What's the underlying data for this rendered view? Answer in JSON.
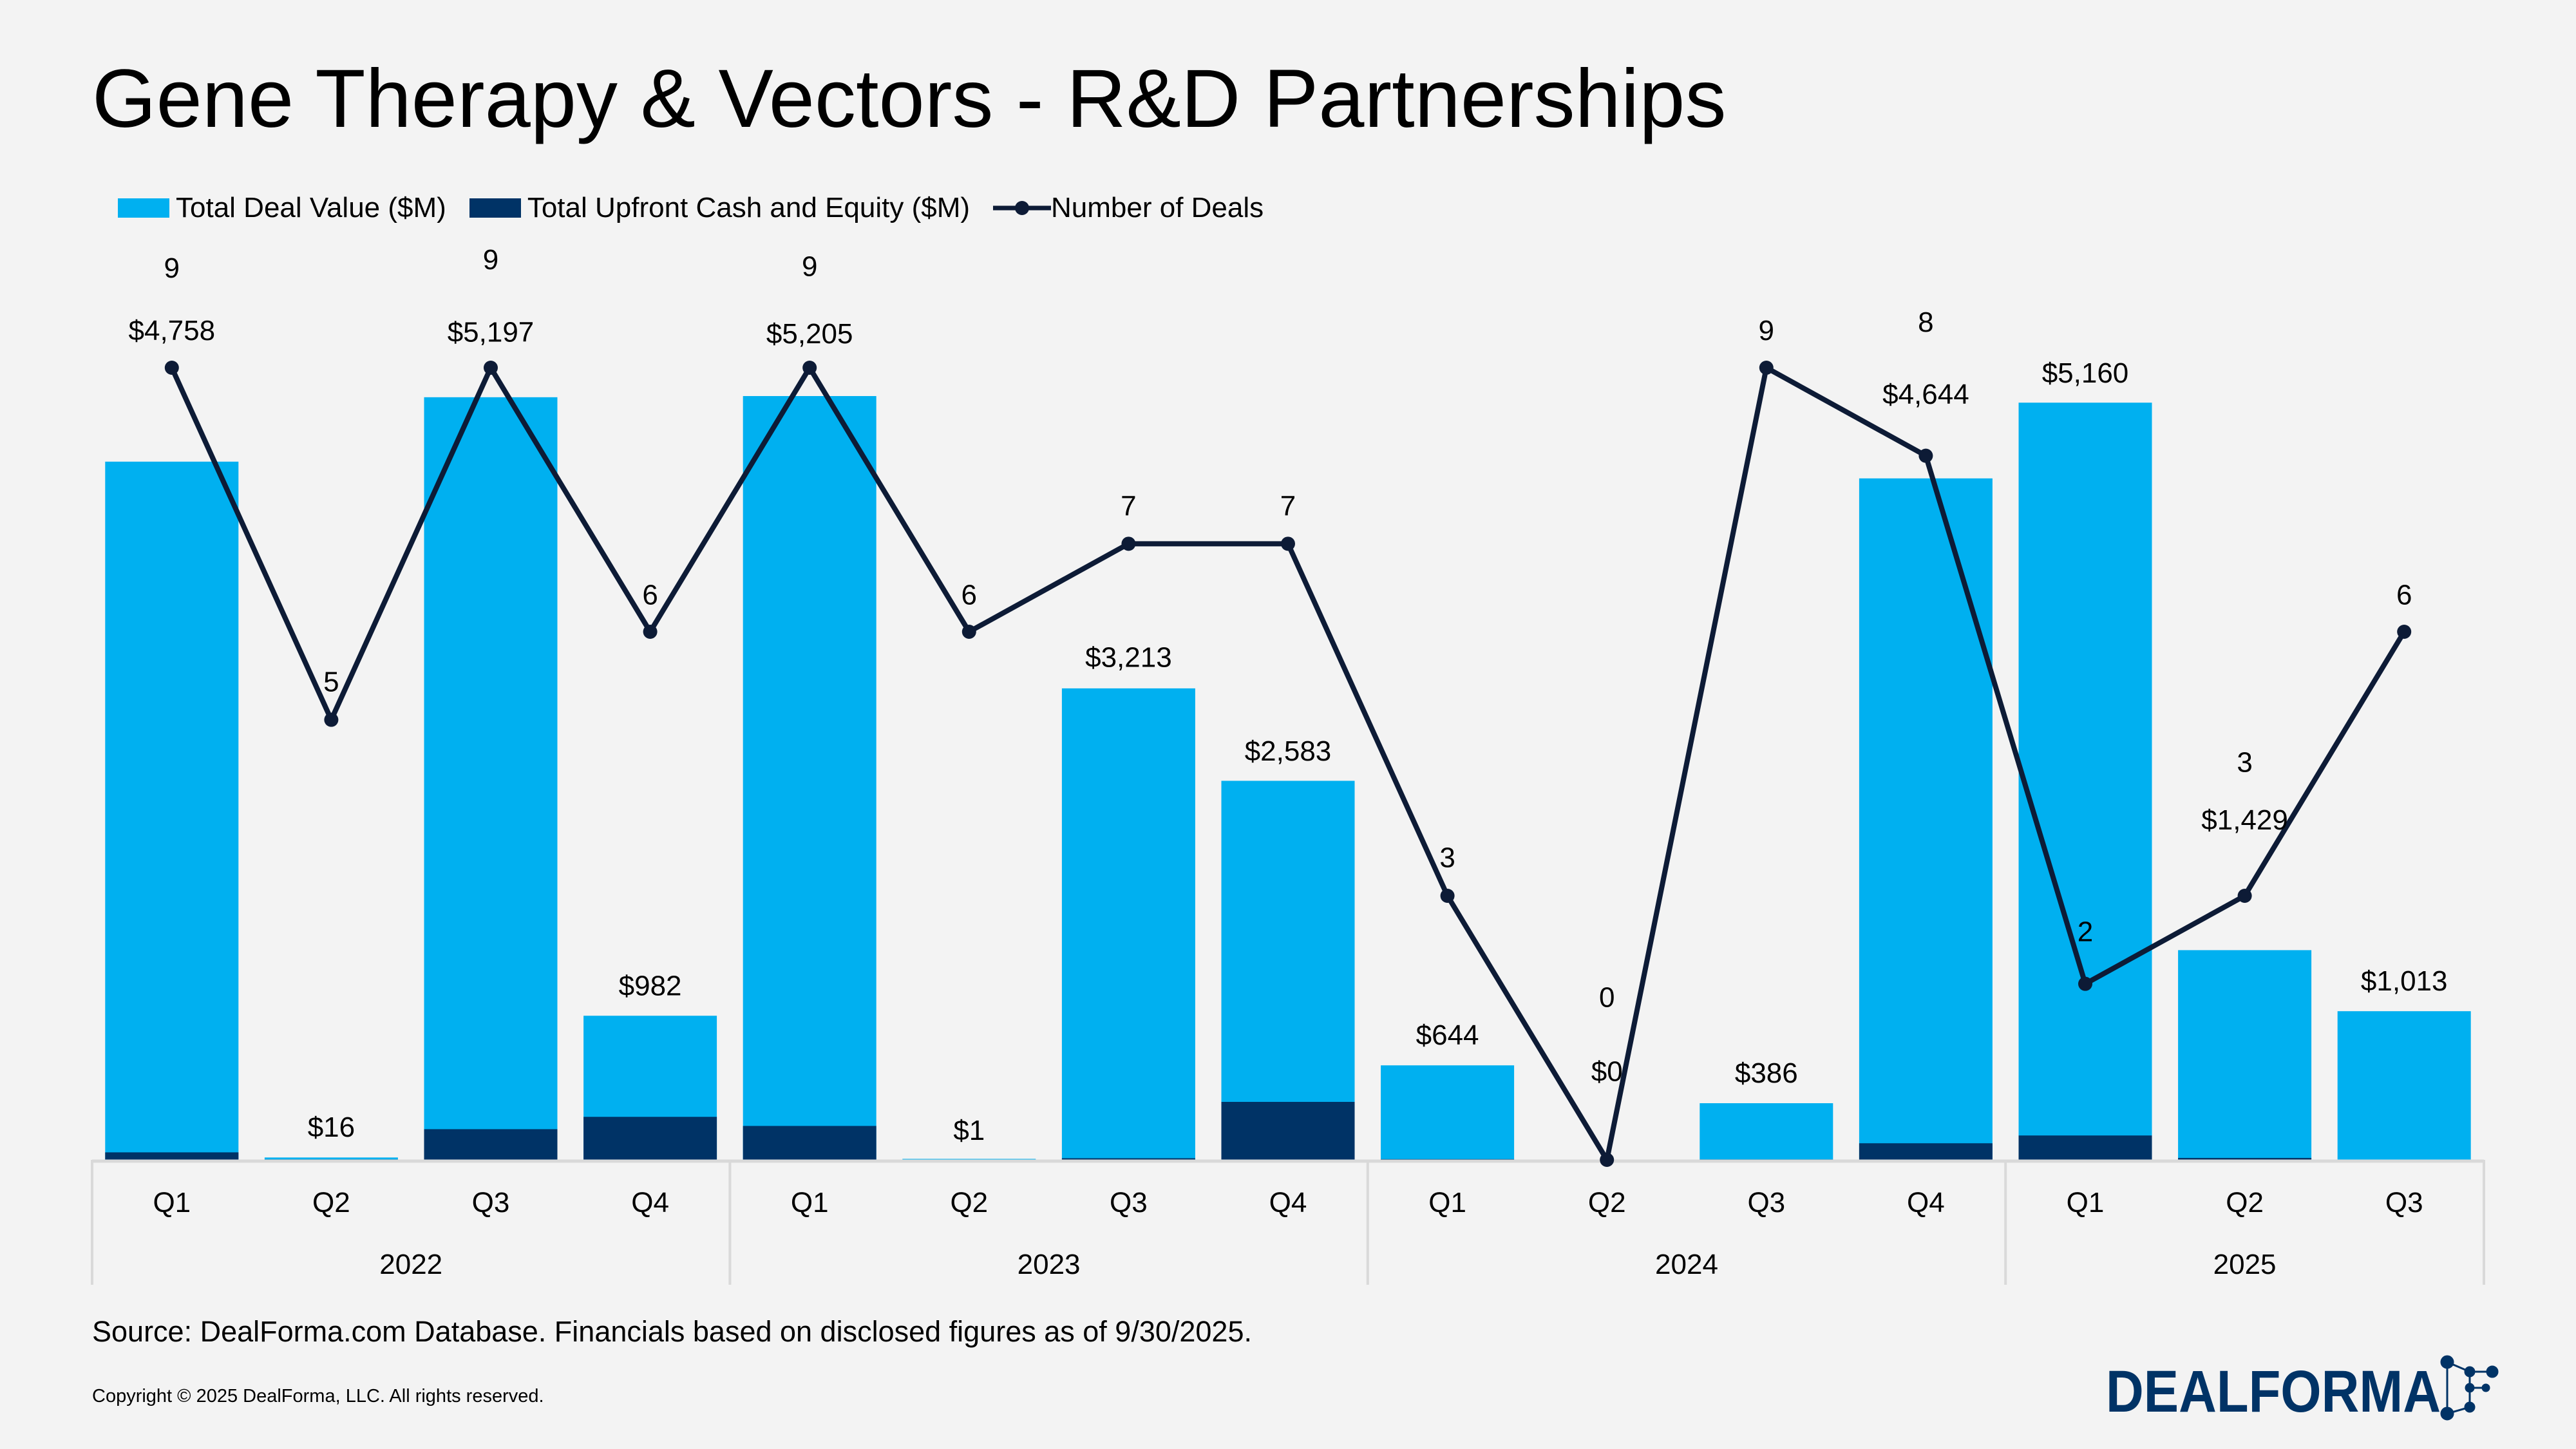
{
  "title": "Gene Therapy & Vectors - R&D Partnerships",
  "legend": {
    "total": "Total Deal Value ($M)",
    "upfront": "Total Upfront Cash and Equity ($M)",
    "deals": "Number of Deals"
  },
  "colors": {
    "total": "#00b0f0",
    "upfront": "#003366",
    "deals": "#0d1b36",
    "axis": "#d9d9d9"
  },
  "chart_data": {
    "type": "bar",
    "title": "Gene Therapy & Vectors - R&D Partnerships",
    "categories": [
      "Q1",
      "Q2",
      "Q3",
      "Q4",
      "Q1",
      "Q2",
      "Q3",
      "Q4",
      "Q1",
      "Q2",
      "Q3",
      "Q4",
      "Q1",
      "Q2",
      "Q3"
    ],
    "groups": [
      {
        "label": "2022",
        "count": 4
      },
      {
        "label": "2023",
        "count": 4
      },
      {
        "label": "2024",
        "count": 4
      },
      {
        "label": "2025",
        "count": 3
      }
    ],
    "series": [
      {
        "name": "Total Deal Value ($M)",
        "type": "bar",
        "values": [
          4758,
          16,
          5197,
          982,
          5205,
          1,
          3213,
          2583,
          644,
          0,
          386,
          4644,
          5160,
          1429,
          1013
        ],
        "labels": [
          "$4,758",
          "$16",
          "$5,197",
          "$982",
          "$5,205",
          "$1",
          "$3,213",
          "$2,583",
          "$644",
          "$0",
          "$386",
          "$4,644",
          "$5,160",
          "$1,429",
          "$1,013"
        ]
      },
      {
        "name": "Total Upfront Cash and Equity ($M)",
        "type": "bar",
        "values": [
          51,
          3,
          209,
          293,
          231,
          0,
          11,
          395,
          5,
          0,
          3,
          113,
          166,
          13,
          0
        ]
      },
      {
        "name": "Number of Deals",
        "type": "line",
        "values": [
          9,
          5,
          9,
          6,
          9,
          6,
          7,
          7,
          3,
          0,
          9,
          8,
          2,
          3,
          6
        ]
      }
    ],
    "ylim": [
      0,
      5400
    ],
    "y2lim": [
      0,
      9
    ],
    "grid": false,
    "legend_position": "top-left"
  },
  "footer": {
    "source": "Source: DealForma.com Database. Financials based on disclosed figures as of 9/30/2025.",
    "copyright": "Copyright © 2025 DealForma, LLC. All rights reserved."
  },
  "logo": {
    "text": "DEALFORMA"
  }
}
